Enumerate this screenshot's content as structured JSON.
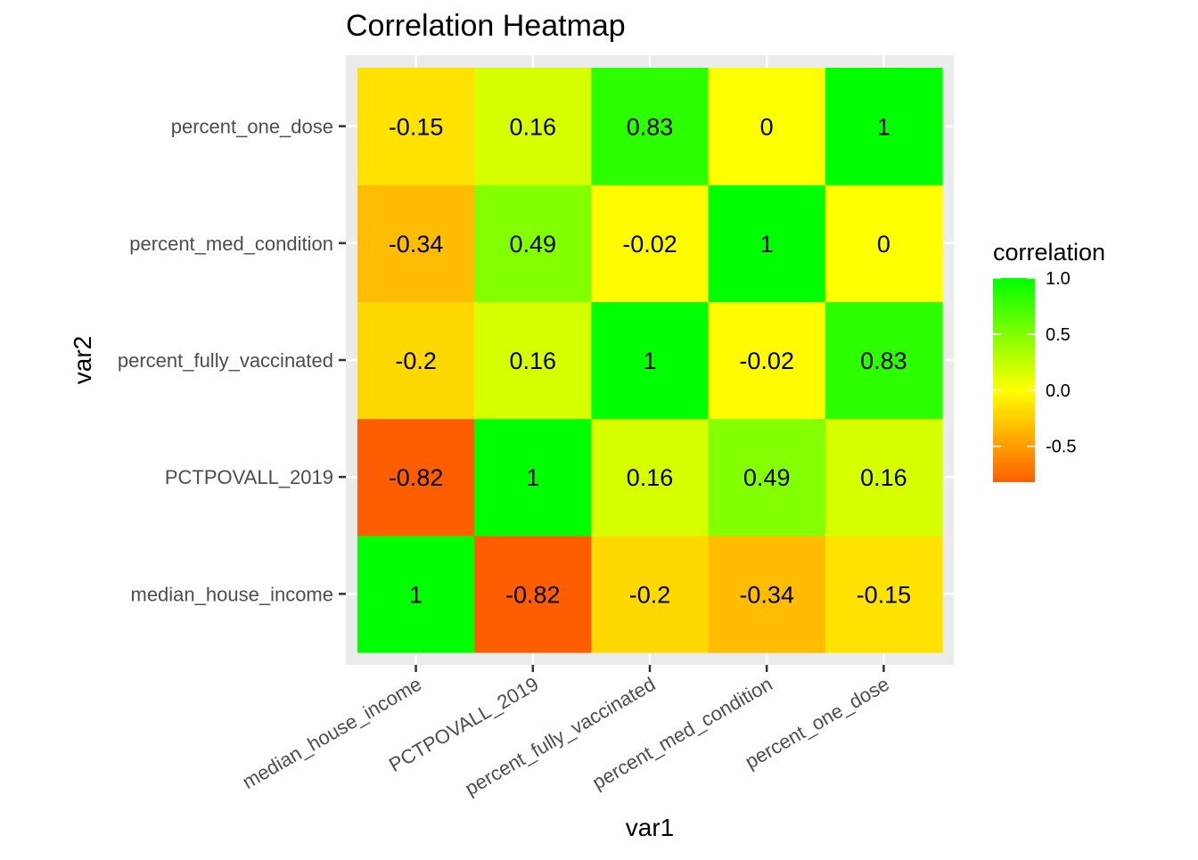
{
  "chart_data": {
    "type": "heatmap",
    "title": "Correlation Heatmap",
    "xlabel": "var1",
    "ylabel": "var2",
    "x_categories": [
      "median_house_income",
      "PCTPOVALL_2019",
      "percent_fully_vaccinated",
      "percent_med_condition",
      "percent_one_dose"
    ],
    "y_categories": [
      "median_house_income",
      "PCTPOVALL_2019",
      "percent_fully_vaccinated",
      "percent_med_condition",
      "percent_one_dose"
    ],
    "cells": [
      {
        "x": "median_house_income",
        "y": "median_house_income",
        "value": 1,
        "label": "1"
      },
      {
        "x": "PCTPOVALL_2019",
        "y": "median_house_income",
        "value": -0.82,
        "label": "-0.82"
      },
      {
        "x": "percent_fully_vaccinated",
        "y": "median_house_income",
        "value": -0.2,
        "label": "-0.2"
      },
      {
        "x": "percent_med_condition",
        "y": "median_house_income",
        "value": -0.34,
        "label": "-0.34"
      },
      {
        "x": "percent_one_dose",
        "y": "median_house_income",
        "value": -0.15,
        "label": "-0.15"
      },
      {
        "x": "median_house_income",
        "y": "PCTPOVALL_2019",
        "value": -0.82,
        "label": "-0.82"
      },
      {
        "x": "PCTPOVALL_2019",
        "y": "PCTPOVALL_2019",
        "value": 1,
        "label": "1"
      },
      {
        "x": "percent_fully_vaccinated",
        "y": "PCTPOVALL_2019",
        "value": 0.16,
        "label": "0.16"
      },
      {
        "x": "percent_med_condition",
        "y": "PCTPOVALL_2019",
        "value": 0.49,
        "label": "0.49"
      },
      {
        "x": "percent_one_dose",
        "y": "PCTPOVALL_2019",
        "value": 0.16,
        "label": "0.16"
      },
      {
        "x": "median_house_income",
        "y": "percent_fully_vaccinated",
        "value": -0.2,
        "label": "-0.2"
      },
      {
        "x": "PCTPOVALL_2019",
        "y": "percent_fully_vaccinated",
        "value": 0.16,
        "label": "0.16"
      },
      {
        "x": "percent_fully_vaccinated",
        "y": "percent_fully_vaccinated",
        "value": 1,
        "label": "1"
      },
      {
        "x": "percent_med_condition",
        "y": "percent_fully_vaccinated",
        "value": -0.02,
        "label": "-0.02"
      },
      {
        "x": "percent_one_dose",
        "y": "percent_fully_vaccinated",
        "value": 0.83,
        "label": "0.83"
      },
      {
        "x": "median_house_income",
        "y": "percent_med_condition",
        "value": -0.34,
        "label": "-0.34"
      },
      {
        "x": "PCTPOVALL_2019",
        "y": "percent_med_condition",
        "value": 0.49,
        "label": "0.49"
      },
      {
        "x": "percent_fully_vaccinated",
        "y": "percent_med_condition",
        "value": -0.02,
        "label": "-0.02"
      },
      {
        "x": "percent_med_condition",
        "y": "percent_med_condition",
        "value": 1,
        "label": "1"
      },
      {
        "x": "percent_one_dose",
        "y": "percent_med_condition",
        "value": 0,
        "label": "0"
      },
      {
        "x": "median_house_income",
        "y": "percent_one_dose",
        "value": -0.15,
        "label": "-0.15"
      },
      {
        "x": "PCTPOVALL_2019",
        "y": "percent_one_dose",
        "value": 0.16,
        "label": "0.16"
      },
      {
        "x": "percent_fully_vaccinated",
        "y": "percent_one_dose",
        "value": 0.83,
        "label": "0.83"
      },
      {
        "x": "percent_med_condition",
        "y": "percent_one_dose",
        "value": 0,
        "label": "0"
      },
      {
        "x": "percent_one_dose",
        "y": "percent_one_dose",
        "value": 1,
        "label": "1"
      }
    ],
    "legend": {
      "title": "correlation",
      "placement": "right",
      "range": [
        -0.82,
        1
      ],
      "ticks": [
        {
          "value": 1.0,
          "label": "1.0"
        },
        {
          "value": 0.5,
          "label": "0.5"
        },
        {
          "value": 0.0,
          "label": "0.0"
        },
        {
          "value": -0.5,
          "label": "-0.5"
        }
      ],
      "colors": {
        "low": "#ff5e00",
        "mid": "#ffff00",
        "high": "#00ff00"
      }
    },
    "panel_background": "#ebebeb",
    "grid": true
  }
}
